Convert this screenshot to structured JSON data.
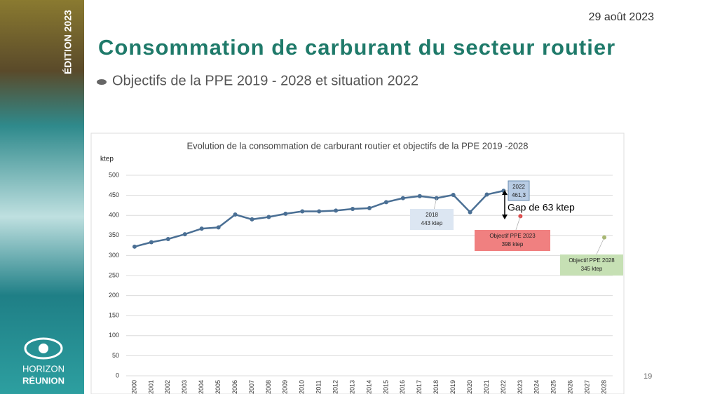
{
  "slide": {
    "edition": "ÉDITION 2023",
    "logo_line1": "HORIZON",
    "logo_line2": "RÉUNION",
    "date": "29 août 2023",
    "title": "Consommation de carburant du secteur routier",
    "subtitle": "Objectifs de la PPE 2019 - 2028 et situation 2022",
    "page_number": "19"
  },
  "chart_data": {
    "type": "line",
    "title": "Evolution de la consommation de carburant routier et objectifs de la PPE 2019   -2028",
    "y_label": "ktep",
    "categories": [
      "2000",
      "2001",
      "2002",
      "2003",
      "2004",
      "2005",
      "2006",
      "2007",
      "2008",
      "2009",
      "2010",
      "2011",
      "2012",
      "2013",
      "2014",
      "2015",
      "2016",
      "2017",
      "2018",
      "2019",
      "2020",
      "2021",
      "2022",
      "2023",
      "2024",
      "2025",
      "2026",
      "2027",
      "2028"
    ],
    "series": [
      {
        "name": "Consommation",
        "color": "#4a6f94",
        "values": [
          322,
          333,
          341,
          353,
          367,
          370,
          402,
          390,
          396,
          404,
          410,
          410,
          412,
          416,
          418,
          433,
          443,
          448,
          443,
          451,
          408,
          452,
          461.3,
          null,
          null,
          null,
          null,
          null,
          null
        ],
        "value_labels": [
          null,
          null,
          null,
          null,
          null,
          null,
          null,
          null,
          null,
          null,
          null,
          null,
          null,
          null,
          null,
          null,
          null,
          null,
          "443 ktep",
          null,
          null,
          null,
          "461,3",
          null,
          null,
          null,
          null,
          null,
          null
        ]
      },
      {
        "name": "Objectif PPE 2023",
        "color": "#e04848",
        "values": [
          null,
          null,
          null,
          null,
          null,
          null,
          null,
          null,
          null,
          null,
          null,
          null,
          null,
          null,
          null,
          null,
          null,
          null,
          null,
          null,
          null,
          null,
          null,
          398,
          null,
          null,
          null,
          null,
          null
        ],
        "value_labels": [
          null,
          null,
          null,
          null,
          null,
          null,
          null,
          null,
          null,
          null,
          null,
          null,
          null,
          null,
          null,
          null,
          null,
          null,
          null,
          null,
          null,
          null,
          null,
          "398 ktep",
          null,
          null,
          null,
          null,
          null
        ]
      },
      {
        "name": "Objectif PPE 2028",
        "color": "#a8b870",
        "values": [
          null,
          null,
          null,
          null,
          null,
          null,
          null,
          null,
          null,
          null,
          null,
          null,
          null,
          null,
          null,
          null,
          null,
          null,
          null,
          null,
          null,
          null,
          null,
          null,
          null,
          null,
          null,
          null,
          345
        ],
        "value_labels": [
          null,
          null,
          null,
          null,
          null,
          null,
          null,
          null,
          null,
          null,
          null,
          null,
          null,
          null,
          null,
          null,
          null,
          null,
          null,
          null,
          null,
          null,
          null,
          null,
          null,
          null,
          null,
          null,
          "345 ktep"
        ]
      }
    ],
    "annotation": "Gap de 63 ktep",
    "ylim": [
      0,
      500
    ],
    "yticks": [
      0,
      50,
      100,
      150,
      200,
      250,
      300,
      350,
      400,
      450,
      500
    ],
    "grid": true
  }
}
